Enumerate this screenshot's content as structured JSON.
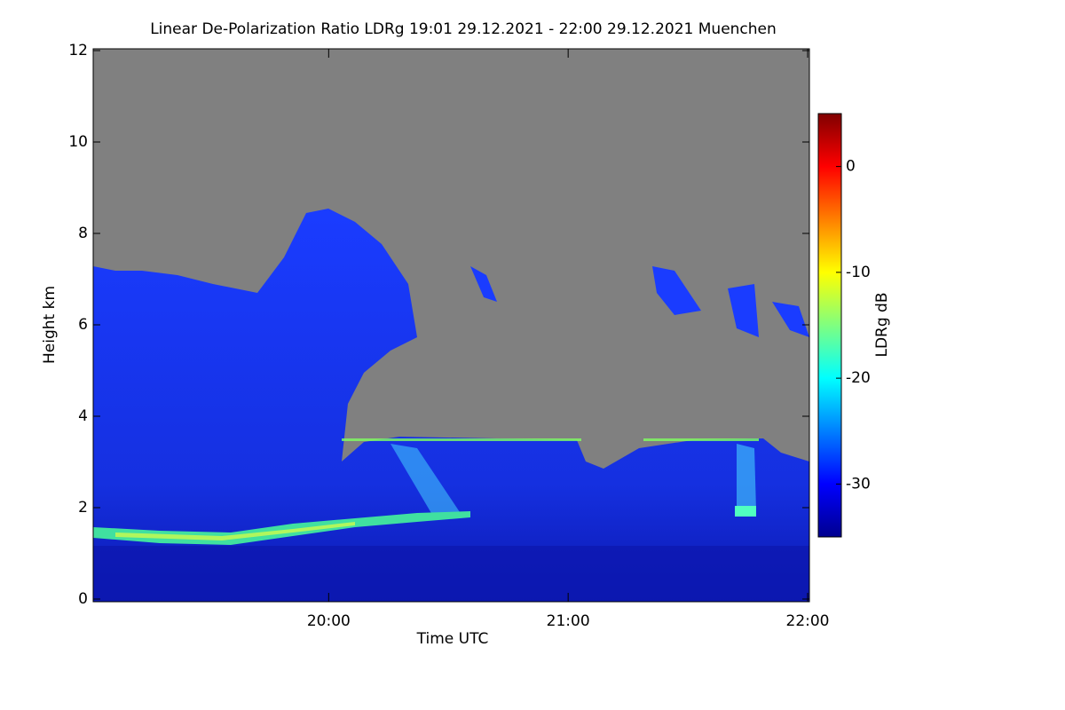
{
  "chart_data": {
    "type": "heatmap",
    "title": "Linear De-Polarization Ratio LDRg   19:01 29.12.2021 - 22:00 29.12.2021 Muenchen",
    "x_label": "Time UTC",
    "y_label": "Height km",
    "xlim": [
      "19:01",
      "22:00"
    ],
    "xticks": [
      "20:00",
      "21:00",
      "22:00"
    ],
    "ylim": [
      0,
      12
    ],
    "yticks": [
      0,
      2,
      4,
      6,
      8,
      10,
      12
    ],
    "colorbar": {
      "label": "LDRg dB",
      "lim": [
        -35,
        5
      ],
      "ticks": [
        0,
        -10,
        -20,
        -30
      ],
      "colormap": "jet"
    }
  }
}
